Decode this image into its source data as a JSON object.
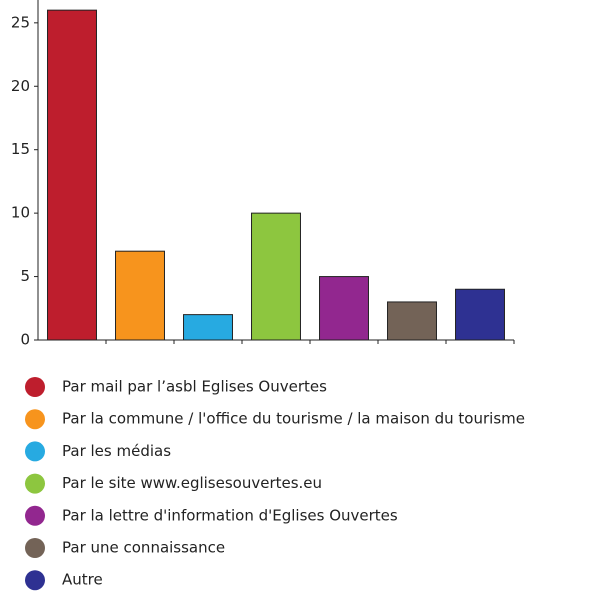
{
  "chart_data": {
    "type": "bar",
    "categories": [
      "Par mail par l’asbl Eglises Ouvertes",
      "Par la commune / l'office du tourisme / la maison du tourisme",
      "Par les médias",
      "Par le site www.eglisesouvertes.eu",
      "Par la lettre d'information d'Eglises Ouvertes",
      "Par une connaissance",
      "Autre"
    ],
    "values": [
      26,
      7,
      2,
      10,
      5,
      3,
      4
    ],
    "colors": [
      "#be1e2d",
      "#f7941d",
      "#27aae1",
      "#8dc63f",
      "#92278f",
      "#736357",
      "#2e3192"
    ],
    "ylim": [
      0,
      26.8
    ],
    "yticks": [
      0,
      5,
      10,
      15,
      20,
      25
    ],
    "grid": false,
    "legend": "bottom"
  }
}
